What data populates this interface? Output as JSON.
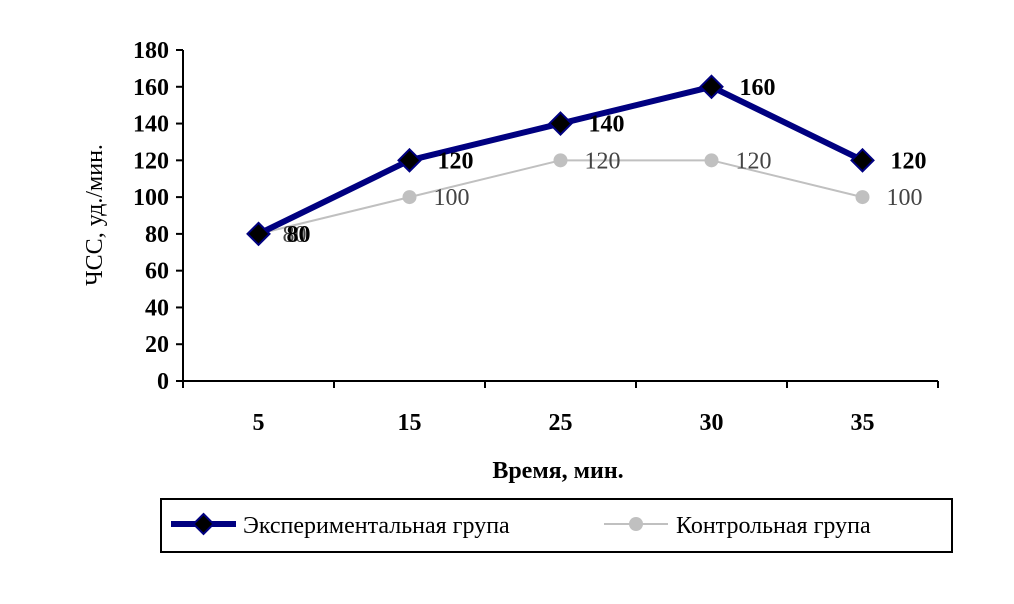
{
  "chart_data": {
    "type": "line",
    "categories": [
      "5",
      "15",
      "25",
      "30",
      "35"
    ],
    "xlabel": "Время, мин.",
    "ylabel": "ЧСС, уд./мин.",
    "ylim": [
      0,
      180
    ],
    "ytick_step": 20,
    "grid": false,
    "legend_position": "bottom",
    "series": [
      {
        "name": "Экспериментальная група",
        "values": [
          80,
          120,
          140,
          160,
          120
        ],
        "color": "#000080",
        "marker": "diamond",
        "marker_fill": "#000000"
      },
      {
        "name": "Контрольная група",
        "values": [
          80,
          100,
          120,
          120,
          100
        ],
        "color": "#c0c0c0",
        "marker": "circle",
        "marker_fill": "#c0c0c0"
      }
    ]
  }
}
